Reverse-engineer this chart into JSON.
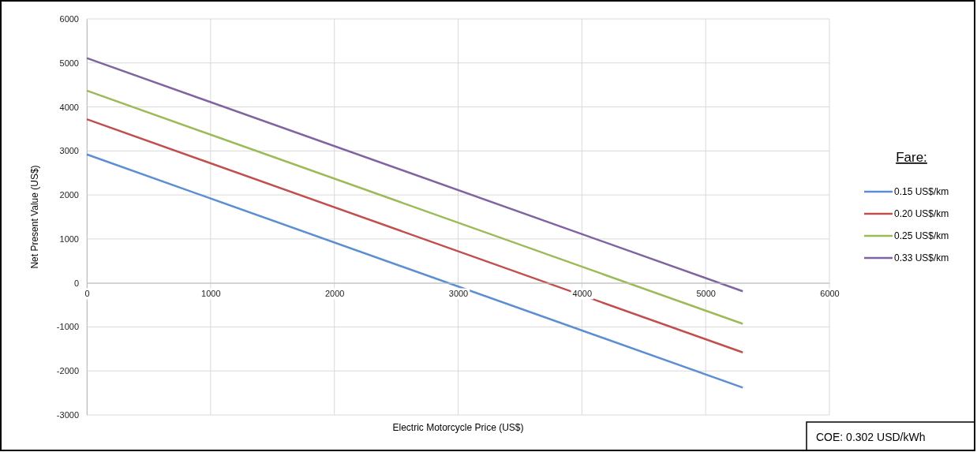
{
  "chart_data": {
    "type": "line",
    "xlabel": "Electric Motorcycle Price (US$)",
    "ylabel": "Net Present Value (US$)",
    "legend_title": "Fare:",
    "x": [
      0,
      5300
    ],
    "series": [
      {
        "name": "0.15 US$/km",
        "color": "#5b8fd2",
        "values": [
          2920,
          -2380
        ]
      },
      {
        "name": "0.20 US$/km",
        "color": "#c0504d",
        "values": [
          3720,
          -1580
        ]
      },
      {
        "name": "0.25 US$/km",
        "color": "#9bbb59",
        "values": [
          4370,
          -930
        ]
      },
      {
        "name": "0.33 US$/km",
        "color": "#8064a2",
        "values": [
          5110,
          -190
        ]
      }
    ],
    "xlim": [
      0,
      6000
    ],
    "xticks": [
      0,
      1000,
      2000,
      3000,
      4000,
      5000,
      6000
    ],
    "ylim": [
      -3000,
      6000
    ],
    "yticks": [
      -3000,
      -2000,
      -1000,
      0,
      1000,
      2000,
      3000,
      4000,
      5000,
      6000
    ],
    "grid": true,
    "legend": "right",
    "marker": "none",
    "line_style": "solid",
    "annotations": [
      "COE: 0.302 USD/kWh"
    ]
  }
}
